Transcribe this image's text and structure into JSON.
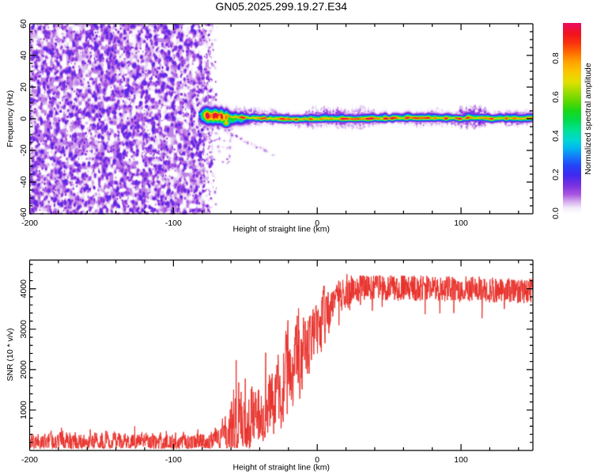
{
  "figure": {
    "title": "GN05.2025.299.19.27.E34",
    "background": "#ffffff",
    "axis_color": "#000000",
    "text_color": "#000000"
  },
  "chart_data": [
    {
      "type": "heatmap",
      "panel": "spectrogram",
      "title": "GN05.2025.299.19.27.E34",
      "xlabel": "Height of straight line (km)",
      "ylabel": "Frequency (Hz)",
      "xlim": [
        -200,
        150
      ],
      "ylim": [
        -60,
        60
      ],
      "xticks": [
        -200,
        -100,
        0,
        100
      ],
      "xtick_labels": [
        "-200",
        "-100",
        "0",
        "100"
      ],
      "yticks": [
        60,
        40,
        20,
        0,
        -20,
        -40,
        -60
      ],
      "ytick_labels": [
        "60",
        "40",
        "20",
        "0",
        "-20",
        "-40",
        "-60"
      ],
      "x_minor_step": 20,
      "y_minor_step": 5,
      "grid": false,
      "colorbar": {
        "label": "Normalized spectral amplitude",
        "ticks": [
          0.0,
          0.2,
          0.4,
          0.6,
          0.8
        ],
        "tick_labels": [
          "0.0",
          "0.2",
          "0.4",
          "0.6",
          "0.8"
        ],
        "range": [
          0,
          1
        ],
        "colormap_stops": [
          [
            0.0,
            "#ffffff"
          ],
          [
            0.03,
            "#f4ecfa"
          ],
          [
            0.065,
            "#d2a8ec"
          ],
          [
            0.1,
            "#a855e2"
          ],
          [
            0.145,
            "#7b32e0"
          ],
          [
            0.2,
            "#4128f0"
          ],
          [
            0.25,
            "#2346f8"
          ],
          [
            0.3,
            "#1482fa"
          ],
          [
            0.34,
            "#00b9f0"
          ],
          [
            0.38,
            "#00d7d2"
          ],
          [
            0.43,
            "#00e196"
          ],
          [
            0.48,
            "#00dc50"
          ],
          [
            0.53,
            "#19d719"
          ],
          [
            0.58,
            "#5fd700"
          ],
          [
            0.63,
            "#a0dc00"
          ],
          [
            0.68,
            "#e1e100"
          ],
          [
            0.73,
            "#fac800"
          ],
          [
            0.78,
            "#ffa500"
          ],
          [
            0.83,
            "#ff6e00"
          ],
          [
            0.88,
            "#fa320f"
          ],
          [
            0.93,
            "#f0121e"
          ],
          [
            0.96,
            "#ee0f46"
          ],
          [
            1.0,
            "#e6096e"
          ]
        ]
      },
      "features": {
        "noise_field": {
          "x_range_km": [
            -200,
            -86
          ],
          "fade_end_km": -69,
          "amplitude_range": [
            0,
            0.21
          ]
        },
        "signal_ridge": {
          "x_start_km": -82.5,
          "center_hz": [
            [
              -82,
              3.2
            ],
            [
              -79,
              4.0
            ],
            [
              -76,
              3.4
            ],
            [
              -73,
              3.0
            ],
            [
              -71,
              3.7
            ],
            [
              -69,
              2.8
            ],
            [
              -67,
              3.3
            ],
            [
              -65,
              2.1
            ],
            [
              -63,
              2.6
            ],
            [
              -61,
              1.6
            ],
            [
              -59,
              1.0
            ],
            [
              -57,
              1.6
            ],
            [
              -55,
              0.8
            ],
            [
              -53,
              1.4
            ],
            [
              -51,
              0.9
            ],
            [
              -49,
              1.3
            ],
            [
              -47,
              0.6
            ],
            [
              -45,
              1.0
            ],
            [
              -43,
              0.5
            ],
            [
              -41,
              0.9
            ],
            [
              -39,
              0.3
            ],
            [
              -37,
              0.7
            ],
            [
              -35,
              0.2
            ],
            [
              -33,
              0.6
            ],
            [
              -31,
              0.1
            ],
            [
              -29,
              0.4
            ],
            [
              -27,
              0.0
            ],
            [
              -25,
              0.3
            ],
            [
              -23,
              -0.1
            ],
            [
              -21,
              0.2
            ],
            [
              -19,
              0.0
            ],
            [
              -17,
              0.2
            ],
            [
              -15,
              -0.1
            ],
            [
              -13,
              0.1
            ],
            [
              -11,
              0.0
            ],
            [
              -9,
              0.2
            ],
            [
              -7,
              -0.1
            ],
            [
              -5,
              0.1
            ],
            [
              -3,
              0.0
            ],
            [
              -1,
              0.2
            ],
            [
              2,
              0.1
            ],
            [
              5,
              0.3
            ],
            [
              8,
              0.0
            ],
            [
              12,
              0.2
            ],
            [
              16,
              0.1
            ],
            [
              20,
              0.3
            ],
            [
              25,
              0.2
            ],
            [
              30,
              0.5
            ],
            [
              35,
              0.3
            ],
            [
              40,
              0.7
            ],
            [
              45,
              0.4
            ],
            [
              50,
              0.6
            ],
            [
              55,
              0.8
            ],
            [
              60,
              0.5
            ],
            [
              65,
              0.7
            ],
            [
              70,
              0.5
            ],
            [
              75,
              0.8
            ],
            [
              80,
              0.5
            ],
            [
              85,
              0.7
            ],
            [
              90,
              0.4
            ],
            [
              95,
              0.7
            ],
            [
              100,
              0.5
            ],
            [
              105,
              0.8
            ],
            [
              110,
              0.5
            ],
            [
              115,
              0.7
            ],
            [
              120,
              0.4
            ],
            [
              125,
              0.6
            ],
            [
              130,
              0.5
            ],
            [
              135,
              0.7
            ],
            [
              140,
              0.5
            ],
            [
              145,
              0.6
            ],
            [
              150,
              0.5
            ]
          ],
          "core_amplitude_range": [
            0.72,
            1.0
          ],
          "core_sigma_hz": 0.9,
          "halo_extent_hz": [
            1.5,
            5.5
          ]
        },
        "onset_cluster": {
          "x_range_km": [
            -83,
            -58
          ],
          "offset_hz": -1.4,
          "sigma_hz": 2.9,
          "amplitude_range": [
            0.55,
            1.05
          ]
        },
        "hanging_blobs": [
          [
            -63.5,
            -2.4,
            0.8,
            3.4,
            3.2
          ],
          [
            -66.5,
            -1.0,
            0.62,
            2.6,
            2.2
          ],
          [
            -59.5,
            -1.4,
            0.55,
            2.4,
            2.0
          ]
        ],
        "descending_streak": {
          "from_km_hz": [
            -70,
            -4.5
          ],
          "to_km_hz": [
            -30,
            -23
          ],
          "n_dots": 26,
          "amplitude_range": [
            0.04,
            0.14
          ]
        },
        "sparse_speckle": {
          "x_range_km": [
            -80,
            -58
          ],
          "freq_range_hz": [
            -28,
            -3
          ],
          "n_dots": 46
        }
      }
    },
    {
      "type": "line",
      "panel": "snr",
      "xlabel": "Height of straight line (km)",
      "ylabel": "SNR (10 * v/v)",
      "xlim": [
        -200,
        150
      ],
      "ylim": [
        0,
        4710
      ],
      "xticks": [
        -200,
        -100,
        0,
        100
      ],
      "xtick_labels": [
        "-200",
        "-100",
        "0",
        "100"
      ],
      "yticks": [
        1000,
        2000,
        3000,
        4000
      ],
      "ytick_labels": [
        "1000",
        "2000",
        "3000",
        "4000"
      ],
      "x_minor_step": 20,
      "y_minor_step": 200,
      "grid": false,
      "color": "#e8302a",
      "series": [
        {
          "name": "SNR",
          "mean_profile": [
            [
              -200,
              200,
              170
            ],
            [
              -160,
              200,
              170
            ],
            [
              -120,
              200,
              170
            ],
            [
              -90,
              200,
              170
            ],
            [
              -75,
              210,
              180
            ],
            [
              -72,
              250,
              190
            ],
            [
              -70,
              300,
              210
            ],
            [
              -68,
              280,
              200
            ],
            [
              -66,
              330,
              260
            ],
            [
              -64,
              380,
              330
            ],
            [
              -62,
              450,
              420
            ],
            [
              -60,
              520,
              500
            ],
            [
              -58,
              620,
              560
            ],
            [
              -56,
              700,
              600
            ],
            [
              -54,
              620,
              560
            ],
            [
              -52,
              700,
              600
            ],
            [
              -50,
              850,
              640
            ],
            [
              -48,
              780,
              600
            ],
            [
              -46,
              820,
              580
            ],
            [
              -44,
              880,
              560
            ],
            [
              -42,
              920,
              560
            ],
            [
              -40,
              980,
              580
            ],
            [
              -38,
              1020,
              600
            ],
            [
              -36,
              1080,
              630
            ],
            [
              -34,
              1130,
              640
            ],
            [
              -32,
              1220,
              650
            ],
            [
              -30,
              1310,
              650
            ],
            [
              -28,
              1390,
              680
            ],
            [
              -26,
              1470,
              700
            ],
            [
              -24,
              1560,
              700
            ],
            [
              -22,
              1650,
              700
            ],
            [
              -20,
              1760,
              700
            ],
            [
              -18,
              1890,
              720
            ],
            [
              -16,
              2040,
              730
            ],
            [
              -14,
              2200,
              740
            ],
            [
              -12,
              2360,
              720
            ],
            [
              -10,
              2470,
              700
            ],
            [
              -8,
              2590,
              680
            ],
            [
              -6,
              2700,
              660
            ],
            [
              -4,
              2800,
              630
            ],
            [
              -2,
              2910,
              600
            ],
            [
              0,
              3040,
              570
            ],
            [
              3,
              3230,
              540
            ],
            [
              6,
              3400,
              510
            ],
            [
              9,
              3550,
              470
            ],
            [
              12,
              3680,
              430
            ],
            [
              15,
              3780,
              390
            ],
            [
              18,
              3870,
              340
            ],
            [
              21,
              3940,
              280
            ],
            [
              25,
              4010,
              230
            ],
            [
              30,
              4040,
              200
            ],
            [
              40,
              4050,
              195
            ],
            [
              50,
              4030,
              195
            ],
            [
              60,
              4050,
              190
            ],
            [
              75,
              4020,
              190
            ],
            [
              90,
              4000,
              185
            ],
            [
              105,
              3990,
              185
            ],
            [
              120,
              3970,
              180
            ],
            [
              135,
              3950,
              180
            ],
            [
              150,
              3940,
              175
            ]
          ],
          "up_spikes": [
            [
              -178,
              560
            ],
            [
              -158,
              520
            ],
            [
              -127,
              600
            ],
            [
              -105,
              480
            ],
            [
              -83,
              520
            ],
            [
              -71,
              560
            ],
            [
              -60,
              1100
            ],
            [
              -58.3,
              1500
            ],
            [
              -56.5,
              2235
            ],
            [
              -54.8,
              1300
            ],
            [
              -53,
              1450
            ],
            [
              -50.2,
              1777
            ],
            [
              -48,
              1250
            ],
            [
              -46,
              1520
            ],
            [
              -44.5,
              1450
            ],
            [
              -42.5,
              1280
            ],
            [
              -40.8,
              1500
            ],
            [
              -39,
              1350
            ],
            [
              -36,
              2418
            ],
            [
              -34,
              1650
            ],
            [
              -31.5,
              1900
            ],
            [
              -29.5,
              1750
            ],
            [
              -28,
              2100
            ],
            [
              -26,
              1850
            ],
            [
              -23.5,
              2400
            ],
            [
              -21,
              2050
            ],
            [
              -19,
              2500
            ],
            [
              -17,
              2250
            ],
            [
              -15.5,
              2800
            ],
            [
              -13,
              3516
            ],
            [
              -11,
              2750
            ],
            [
              -9.5,
              3100
            ],
            [
              -7,
              2950
            ],
            [
              -5.5,
              3300
            ],
            [
              -3.5,
              3150
            ],
            [
              -2,
              3400
            ],
            [
              0,
              3250
            ],
            [
              3,
              3700
            ],
            [
              7,
              3800
            ],
            [
              34,
              4200
            ],
            [
              42,
              4150
            ],
            [
              55,
              4250
            ],
            [
              60,
              4320
            ],
            [
              90,
              4230
            ],
            [
              120,
              4180
            ]
          ],
          "down_spikes": [
            [
              -60,
              80
            ],
            [
              -57.8,
              120
            ],
            [
              -55,
              180
            ],
            [
              -52,
              160
            ],
            [
              -48,
              250
            ],
            [
              -44,
              300
            ],
            [
              -41,
              280
            ],
            [
              -37,
              500
            ],
            [
              -33,
              600
            ],
            [
              -29,
              700
            ],
            [
              -25,
              800
            ],
            [
              -21,
              900
            ],
            [
              -17,
              1100
            ],
            [
              -12,
              1500
            ],
            [
              -7,
              1900
            ],
            [
              0,
              2400
            ],
            [
              8,
              2900
            ],
            [
              15,
              3100
            ],
            [
              30,
              3600
            ],
            [
              45,
              3550
            ],
            [
              75,
              3370
            ],
            [
              95,
              3400
            ],
            [
              130,
              3500
            ]
          ]
        }
      ]
    }
  ]
}
